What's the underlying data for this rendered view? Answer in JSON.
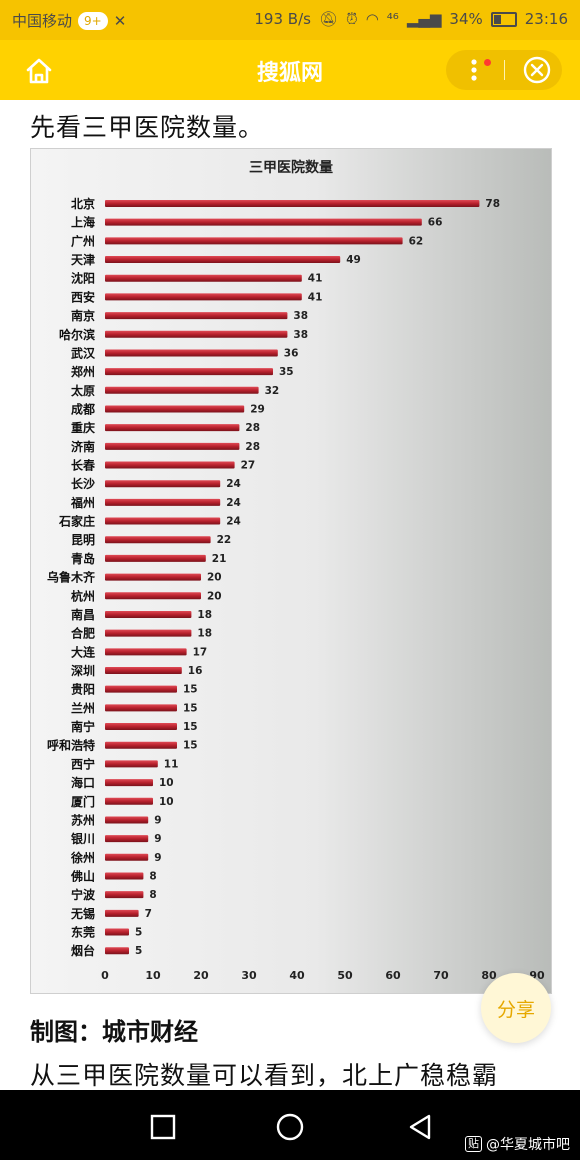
{
  "status": {
    "carrier": "中国移动",
    "badge": "9+",
    "speed": "193 B/s",
    "network": "⁴⁶",
    "battery": "34%",
    "time": "23:16"
  },
  "appbar": {
    "title": "搜狐网"
  },
  "article": {
    "intro": "先看三甲医院数量。",
    "caption": "制图：城市财经",
    "paragraph": "从三甲医院数量可以看到，北上广稳稳霸",
    "share_label": "分享"
  },
  "watermark": {
    "box": "贴",
    "text": "@华夏城市吧"
  },
  "colors": {
    "accent": "#ffd200",
    "bar": "#b8212d"
  },
  "chart_data": {
    "type": "bar",
    "orientation": "horizontal",
    "title": "三甲医院数量",
    "categories": [
      "北京",
      "上海",
      "广州",
      "天津",
      "沈阳",
      "西安",
      "南京",
      "哈尔滨",
      "武汉",
      "郑州",
      "太原",
      "成都",
      "重庆",
      "济南",
      "长春",
      "长沙",
      "福州",
      "石家庄",
      "昆明",
      "青岛",
      "乌鲁木齐",
      "杭州",
      "南昌",
      "合肥",
      "大连",
      "深圳",
      "贵阳",
      "兰州",
      "南宁",
      "呼和浩特",
      "西宁",
      "海口",
      "厦门",
      "苏州",
      "银川",
      "徐州",
      "佛山",
      "宁波",
      "无锡",
      "东莞",
      "烟台"
    ],
    "values": [
      78,
      66,
      62,
      49,
      41,
      41,
      38,
      38,
      36,
      35,
      32,
      29,
      28,
      28,
      27,
      24,
      24,
      24,
      22,
      21,
      20,
      20,
      18,
      18,
      17,
      16,
      15,
      15,
      15,
      15,
      11,
      10,
      10,
      9,
      9,
      9,
      8,
      8,
      7,
      5,
      5
    ],
    "xticks": [
      0,
      10,
      20,
      30,
      40,
      50,
      60,
      70,
      80,
      90
    ],
    "xlim": [
      0,
      90
    ],
    "grid": false,
    "legend": "none"
  }
}
